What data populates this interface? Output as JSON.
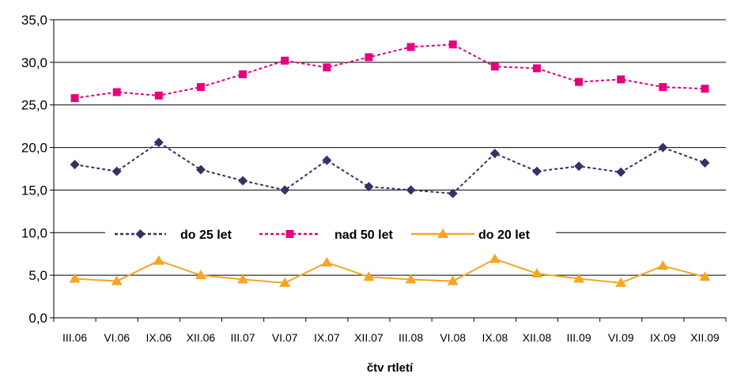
{
  "chart_data": {
    "type": "line",
    "title": "",
    "xlabel": "čtv rtletí",
    "ylabel": "",
    "ylim": [
      0,
      35
    ],
    "y_ticks": [
      "0,0",
      "5,0",
      "10,0",
      "15,0",
      "20,0",
      "25,0",
      "30,0",
      "35,0"
    ],
    "grid": "horizontal",
    "legend_position": "middle",
    "categories": [
      "III.06",
      "VI.06",
      "IX.06",
      "XII.06",
      "III.07",
      "VI.07",
      "IX.07",
      "XII.07",
      "III.08",
      "VI.08",
      "IX.08",
      "XII.08",
      "III.09",
      "VI.09",
      "IX.09",
      "XII.09"
    ],
    "series": [
      {
        "name": "do 25 let",
        "color": "#333366",
        "marker": "diamond",
        "line_style": "dotted",
        "values": [
          18.0,
          17.2,
          20.6,
          17.4,
          16.1,
          15.0,
          18.5,
          15.4,
          15.0,
          14.6,
          19.3,
          17.2,
          17.8,
          17.1,
          20.0,
          18.2
        ]
      },
      {
        "name": "nad 50 let",
        "color": "#e6007e",
        "marker": "square",
        "line_style": "dotted",
        "values": [
          25.8,
          26.5,
          26.1,
          27.1,
          28.6,
          30.2,
          29.4,
          30.6,
          31.8,
          32.1,
          29.5,
          29.3,
          27.7,
          28.0,
          27.1,
          26.9
        ]
      },
      {
        "name": "do 20 let",
        "color": "#f5a623",
        "marker": "triangle",
        "line_style": "solid",
        "values": [
          4.6,
          4.3,
          6.7,
          5.0,
          4.5,
          4.1,
          6.5,
          4.8,
          4.5,
          4.3,
          6.9,
          5.2,
          4.6,
          4.1,
          6.1,
          4.8
        ]
      }
    ]
  }
}
